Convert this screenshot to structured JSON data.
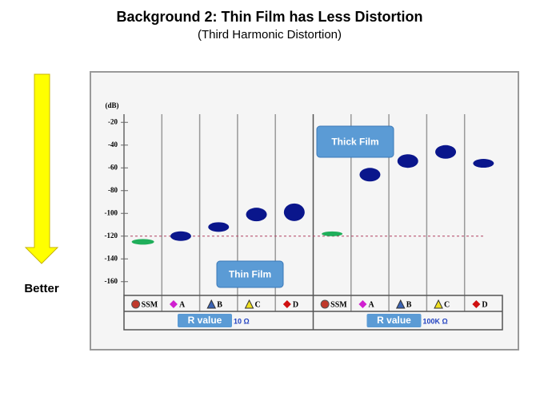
{
  "chart_data": {
    "type": "scatter",
    "title": "Background 2: Thin Film has Less Distortion",
    "subtitle": "(Third Harmonic Distortion)",
    "side_label": "Better",
    "y_label": "(dB)",
    "ylim": [
      -170,
      -10
    ],
    "yticks": [
      -20,
      -40,
      -60,
      -80,
      -100,
      -120,
      -140,
      -160
    ],
    "reference_line": -120,
    "categories": [
      "SSM",
      "A",
      "B",
      "C",
      "D"
    ],
    "legend_markers": [
      {
        "shape": "circle",
        "color": "#c0392b"
      },
      {
        "shape": "diamond",
        "color": "#d020d0"
      },
      {
        "shape": "triangle",
        "color": "#3c64b4"
      },
      {
        "shape": "triangle",
        "color": "#f0e020"
      },
      {
        "shape": "diamond",
        "color": "#d01010"
      }
    ],
    "point_colors": [
      "#1fae5a",
      "#0a168c",
      "#0a168c",
      "#0a168c",
      "#0a168c"
    ],
    "group_label": "R value",
    "groups": [
      {
        "name": "10 Ω",
        "values": [
          -125,
          -120,
          -112,
          -101,
          -99
        ]
      },
      {
        "name": "100K Ω",
        "values": [
          -118,
          -66,
          -54,
          -46,
          -56
        ]
      }
    ],
    "annotations": [
      "Thin Film",
      "Thick Film"
    ]
  }
}
